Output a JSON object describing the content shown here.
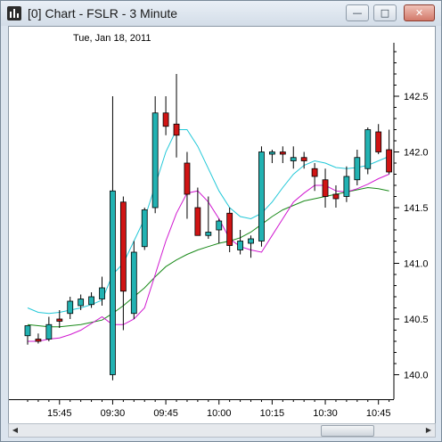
{
  "window": {
    "title": "[0]  Chart - FSLR - 3 Minute",
    "controls": {
      "minimize": "—",
      "maximize": "□",
      "close": "✕"
    }
  },
  "colors": {
    "up_candle": "#22b2b2",
    "down_candle": "#d01414",
    "ma_fast": "#22c8d8",
    "ma_mid": "#d018d0",
    "ma_slow": "#1a8a1a"
  },
  "chart_data": {
    "type": "candlestick",
    "symbol": "FSLR",
    "interval": "3 Minute",
    "date_label": "Tue, Jan 18, 2011",
    "x_labels": [
      "15:45",
      "09:30",
      "09:45",
      "10:00",
      "10:15",
      "10:30",
      "10:45"
    ],
    "y_ticks": [
      "140.0",
      "140.5",
      "141.0",
      "141.5",
      "142.0",
      "142.5"
    ],
    "ylim": [
      139.78,
      142.98
    ],
    "candles": [
      {
        "o": 140.35,
        "h": 140.42,
        "l": 140.27,
        "c": 140.44
      },
      {
        "o": 140.32,
        "h": 140.37,
        "l": 140.28,
        "c": 140.3
      },
      {
        "o": 140.32,
        "h": 140.52,
        "l": 140.3,
        "c": 140.45
      },
      {
        "o": 140.5,
        "h": 140.58,
        "l": 140.42,
        "c": 140.48
      },
      {
        "o": 140.55,
        "h": 140.7,
        "l": 140.5,
        "c": 140.66
      },
      {
        "o": 140.62,
        "h": 140.72,
        "l": 140.58,
        "c": 140.68
      },
      {
        "o": 140.63,
        "h": 140.74,
        "l": 140.6,
        "c": 140.7
      },
      {
        "o": 140.68,
        "h": 140.88,
        "l": 140.62,
        "c": 140.78
      },
      {
        "o": 140.0,
        "h": 142.5,
        "l": 139.95,
        "c": 141.65
      },
      {
        "o": 141.55,
        "h": 141.6,
        "l": 140.4,
        "c": 140.75
      },
      {
        "o": 140.55,
        "h": 141.2,
        "l": 140.5,
        "c": 141.1
      },
      {
        "o": 141.15,
        "h": 141.5,
        "l": 141.12,
        "c": 141.48
      },
      {
        "o": 141.5,
        "h": 142.5,
        "l": 141.45,
        "c": 142.35
      },
      {
        "o": 142.35,
        "h": 142.5,
        "l": 142.15,
        "c": 142.23
      },
      {
        "o": 142.25,
        "h": 142.7,
        "l": 141.95,
        "c": 142.15
      },
      {
        "o": 141.9,
        "h": 142.0,
        "l": 141.4,
        "c": 141.62
      },
      {
        "o": 141.5,
        "h": 141.68,
        "l": 141.27,
        "c": 141.25
      },
      {
        "o": 141.25,
        "h": 141.6,
        "l": 141.22,
        "c": 141.28
      },
      {
        "o": 141.3,
        "h": 141.4,
        "l": 141.18,
        "c": 141.38
      },
      {
        "o": 141.45,
        "h": 141.5,
        "l": 141.1,
        "c": 141.16
      },
      {
        "o": 141.12,
        "h": 141.3,
        "l": 141.08,
        "c": 141.2
      },
      {
        "o": 141.18,
        "h": 141.25,
        "l": 141.05,
        "c": 141.22
      },
      {
        "o": 141.2,
        "h": 142.05,
        "l": 141.15,
        "c": 142.0
      },
      {
        "o": 141.98,
        "h": 142.02,
        "l": 141.9,
        "c": 142.0
      },
      {
        "o": 142.0,
        "h": 142.05,
        "l": 141.9,
        "c": 141.98
      },
      {
        "o": 141.92,
        "h": 142.05,
        "l": 141.85,
        "c": 141.95
      },
      {
        "o": 141.95,
        "h": 142.0,
        "l": 141.85,
        "c": 141.92
      },
      {
        "o": 141.85,
        "h": 141.9,
        "l": 141.65,
        "c": 141.78
      },
      {
        "o": 141.75,
        "h": 141.85,
        "l": 141.5,
        "c": 141.6
      },
      {
        "o": 141.62,
        "h": 141.7,
        "l": 141.5,
        "c": 141.58
      },
      {
        "o": 141.6,
        "h": 141.87,
        "l": 141.55,
        "c": 141.78
      },
      {
        "o": 141.75,
        "h": 142.02,
        "l": 141.7,
        "c": 141.95
      },
      {
        "o": 141.85,
        "h": 142.22,
        "l": 141.8,
        "c": 142.2
      },
      {
        "o": 142.18,
        "h": 142.25,
        "l": 141.98,
        "c": 142.0
      },
      {
        "o": 142.02,
        "h": 142.2,
        "l": 141.8,
        "c": 141.82
      }
    ],
    "ma_fast": [
      140.6,
      140.56,
      140.55,
      140.56,
      140.58,
      140.6,
      140.63,
      140.67,
      140.9,
      141.0,
      141.2,
      141.4,
      141.7,
      142.0,
      142.2,
      142.2,
      142.05,
      141.85,
      141.65,
      141.5,
      141.42,
      141.4,
      141.45,
      141.55,
      141.68,
      141.8,
      141.88,
      141.92,
      141.9,
      141.86,
      141.85,
      141.86,
      141.88,
      141.92,
      141.96
    ],
    "ma_mid": [
      140.3,
      140.3,
      140.32,
      140.33,
      140.36,
      140.4,
      140.46,
      140.52,
      140.45,
      140.45,
      140.5,
      140.6,
      140.9,
      141.2,
      141.45,
      141.63,
      141.65,
      141.55,
      141.4,
      141.22,
      141.15,
      141.12,
      141.1,
      141.25,
      141.4,
      141.55,
      141.63,
      141.7,
      141.7,
      141.65,
      141.64,
      141.67,
      141.71,
      141.76,
      141.8
    ],
    "ma_slow": [
      140.45,
      140.44,
      140.43,
      140.43,
      140.44,
      140.45,
      140.47,
      140.49,
      140.55,
      140.62,
      140.7,
      140.78,
      140.88,
      140.97,
      141.03,
      141.08,
      141.12,
      141.15,
      141.18,
      141.2,
      141.23,
      141.28,
      141.35,
      141.42,
      141.48,
      141.52,
      141.56,
      141.58,
      141.6,
      141.62,
      141.64,
      141.66,
      141.68,
      141.67,
      141.65
    ]
  }
}
